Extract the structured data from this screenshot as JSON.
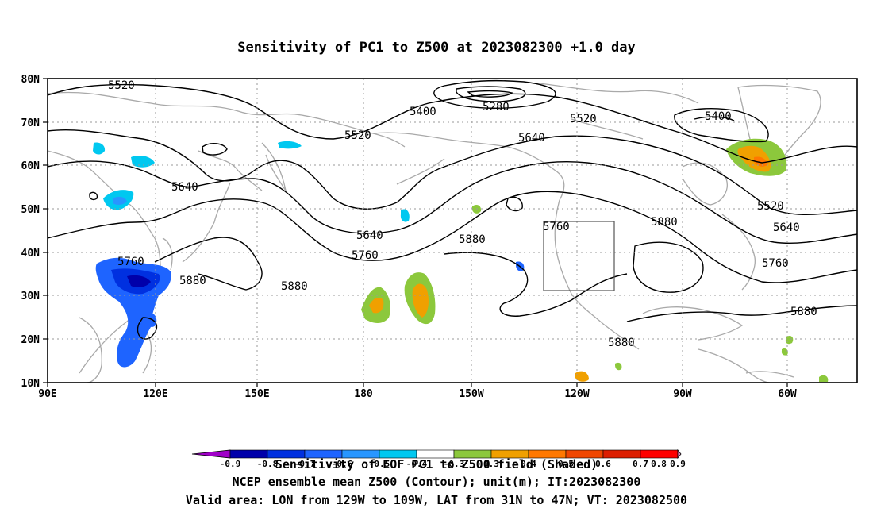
{
  "title": "Sensitivity of PC1 to Z500 at 2023082300 +1.0 day",
  "lat_labels": [
    "80N",
    "70N",
    "60N",
    "50N",
    "40N",
    "30N",
    "20N",
    "10N"
  ],
  "lon_labels": [
    "90E",
    "120E",
    "150E",
    "180",
    "150W",
    "120W",
    "90W",
    "60W"
  ],
  "contour_labels": [
    "5520",
    "5400",
    "5280",
    "5520",
    "5400",
    "5520",
    "5640",
    "5640",
    "5880",
    "5640",
    "5760",
    "5880",
    "5760",
    "5880",
    "5520",
    "5640",
    "5760",
    "5880",
    "5880",
    "5760",
    "5880"
  ],
  "colorbar": {
    "colors": [
      "#a000c8",
      "#0000aa",
      "#0030e0",
      "#1e64ff",
      "#2896ff",
      "#00c8f0",
      "#ffffff",
      "#8cc83c",
      "#f0a000",
      "#ff7800",
      "#f04600",
      "#dc1e00",
      "#ff0000",
      "#f08cc8"
    ],
    "ticks": [
      "-0.9",
      "-0.8",
      "-0.7",
      "-0.6",
      "-0.5",
      "-0.4",
      "-0.3",
      "0.3",
      "0.4",
      "0.5",
      "0.6",
      "0.7",
      "0.8",
      "0.9"
    ]
  },
  "footer": {
    "line1": "Sensitivity of EOF PC1 to Z500 field (Shaded)",
    "line2": "NCEP ensemble mean Z500 (Contour); unit(m); IT:2023082300",
    "line3": "Valid area: LON from 129W to 109W, LAT from 31N to 47N; VT: 2023082500"
  }
}
